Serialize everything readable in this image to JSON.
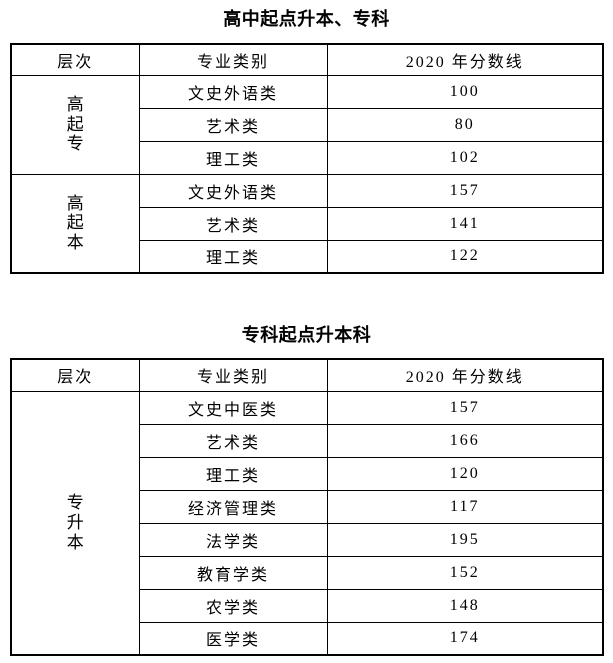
{
  "page": {
    "background_color": "#ffffff",
    "border_color": "#000000",
    "text_color": "#000000"
  },
  "tables": [
    {
      "title": "高中起点升本、专科",
      "headers": {
        "level": "层次",
        "category": "专业类别",
        "score": "2020 年分数线"
      },
      "groups": [
        {
          "level": "高起专",
          "rows": [
            {
              "category": "文史外语类",
              "score": "100"
            },
            {
              "category": "艺术类",
              "score": "80"
            },
            {
              "category": "理工类",
              "score": "102"
            }
          ]
        },
        {
          "level": "高起本",
          "rows": [
            {
              "category": "文史外语类",
              "score": "157"
            },
            {
              "category": "艺术类",
              "score": "141"
            },
            {
              "category": "理工类",
              "score": "122"
            }
          ]
        }
      ]
    },
    {
      "title": "专科起点升本科",
      "headers": {
        "level": "层次",
        "category": "专业类别",
        "score": "2020 年分数线"
      },
      "groups": [
        {
          "level": "专升本",
          "rows": [
            {
              "category": "文史中医类",
              "score": "157"
            },
            {
              "category": "艺术类",
              "score": "166"
            },
            {
              "category": "理工类",
              "score": "120"
            },
            {
              "category": "经济管理类",
              "score": "117"
            },
            {
              "category": "法学类",
              "score": "195"
            },
            {
              "category": "教育学类",
              "score": "152"
            },
            {
              "category": "农学类",
              "score": "148"
            },
            {
              "category": "医学类",
              "score": "174"
            }
          ]
        }
      ]
    }
  ]
}
